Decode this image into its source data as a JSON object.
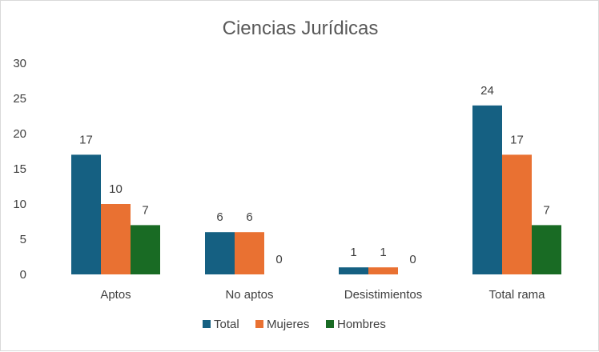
{
  "chart_data": {
    "type": "bar",
    "title": "Ciencias Jurídicas",
    "xlabel": "",
    "ylabel": "",
    "categories": [
      "Aptos",
      "No aptos",
      "Desistimientos",
      "Total rama"
    ],
    "series": [
      {
        "name": "Total",
        "values": [
          17,
          6,
          1,
          24
        ],
        "color": "#156082"
      },
      {
        "name": "Mujeres",
        "values": [
          10,
          6,
          1,
          17
        ],
        "color": "#E97132"
      },
      {
        "name": "Hombres",
        "values": [
          7,
          0,
          0,
          7
        ],
        "color": "#196B24"
      }
    ],
    "ylim": [
      0,
      30
    ],
    "yticks": [
      "0",
      "5",
      "10",
      "15",
      "20",
      "25",
      "30"
    ],
    "grid": false,
    "data_labels": true,
    "legend_position": "bottom"
  }
}
